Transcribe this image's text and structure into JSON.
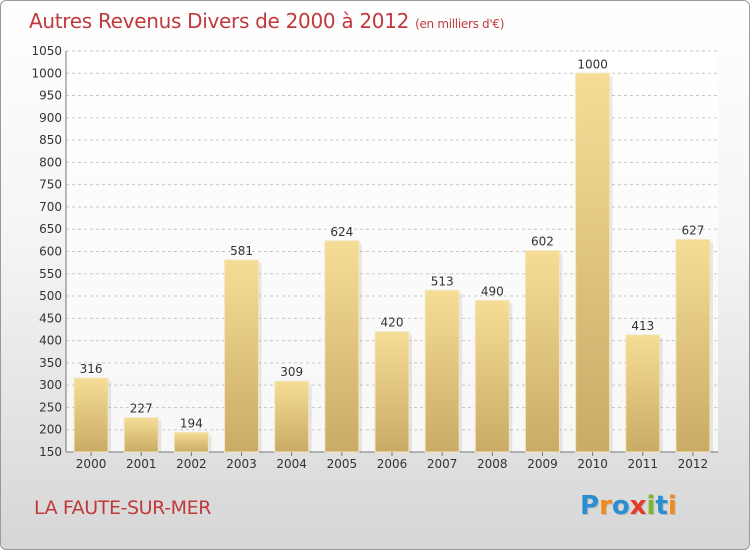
{
  "title": "Autres Revenus Divers de 2000 à 2012",
  "unit_label": "(en milliers d'€)",
  "commune": "LA FAUTE-SUR-MER",
  "logo": {
    "text": "Proxiti",
    "letters": [
      {
        "ch": "P",
        "color": "#2a8fd1"
      },
      {
        "ch": "r",
        "color": "#f28a1a"
      },
      {
        "ch": "o",
        "color": "#2a8fd1"
      },
      {
        "ch": "x",
        "color": "#e23b2b"
      },
      {
        "ch": "i",
        "color": "#7ab82a"
      },
      {
        "ch": "t",
        "color": "#2a8fd1"
      },
      {
        "ch": "i",
        "color": "#f28a1a"
      }
    ]
  },
  "chart_data": {
    "type": "bar",
    "title": "Autres Revenus Divers de 2000 à 2012",
    "subtitle": "(en milliers d'€)",
    "categories": [
      "2000",
      "2001",
      "2002",
      "2003",
      "2004",
      "2005",
      "2006",
      "2007",
      "2008",
      "2009",
      "2010",
      "2011",
      "2012"
    ],
    "values": [
      316,
      227,
      194,
      581,
      309,
      624,
      420,
      513,
      490,
      602,
      1000,
      413,
      627
    ],
    "ylim": [
      150,
      1050
    ],
    "yticks": [
      150,
      200,
      250,
      300,
      350,
      400,
      450,
      500,
      550,
      600,
      650,
      700,
      750,
      800,
      850,
      900,
      950,
      1000,
      1050
    ],
    "grid": true,
    "bar_color": "#e2c57e",
    "legend": "none"
  }
}
